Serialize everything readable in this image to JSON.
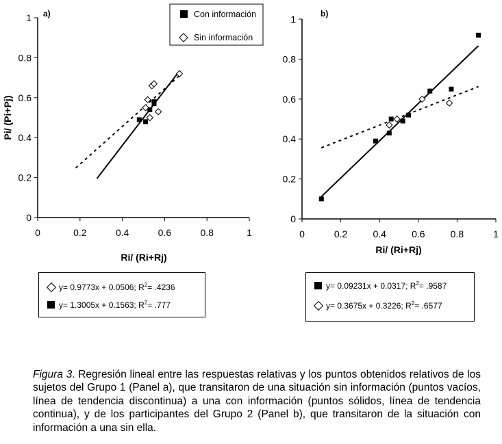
{
  "chart_data": [
    {
      "type": "scatter",
      "panel_label": "a)",
      "xlabel": "Ri/ (Ri+Rj)",
      "ylabel": "Pi/ (Pi+Pj)",
      "xlim": [
        0,
        1
      ],
      "ylim": [
        0,
        1
      ],
      "xticks": [
        "0",
        "0.2",
        "0.4",
        "0.6",
        "0.8",
        "1"
      ],
      "yticks": [
        "0",
        "0.2",
        "0.4",
        "0.6",
        "0.8",
        "1"
      ],
      "grid": false,
      "legend_position": "top-right",
      "series": [
        {
          "name": "Con información",
          "marker": "filled-square",
          "points": [
            [
              0.48,
              0.49
            ],
            [
              0.51,
              0.48
            ],
            [
              0.53,
              0.54
            ],
            [
              0.55,
              0.58
            ],
            [
              0.55,
              0.57
            ]
          ],
          "trendline": {
            "style": "solid",
            "x_range": [
              0.28,
              0.67
            ],
            "equation": "y= 1.3005x + 0.1563; R2= .777"
          }
        },
        {
          "name": "Sin información",
          "marker": "open-diamond",
          "points": [
            [
              0.52,
              0.59
            ],
            [
              0.53,
              0.5
            ],
            [
              0.54,
              0.66
            ],
            [
              0.55,
              0.67
            ],
            [
              0.57,
              0.53
            ],
            [
              0.51,
              0.55
            ],
            [
              0.67,
              0.72
            ]
          ],
          "trendline": {
            "style": "dashed",
            "x_range": [
              0.18,
              0.67
            ],
            "equation": "y= 0.9773x + 0.0506; R2= .4236"
          }
        }
      ]
    },
    {
      "type": "scatter",
      "panel_label": "b)",
      "xlabel": "Ri/ (Ri+Rj)",
      "ylabel": "",
      "xlim": [
        0,
        1
      ],
      "ylim": [
        0,
        1
      ],
      "xticks": [
        "0",
        "0.2",
        "0.4",
        "0.6",
        "0.8",
        "1"
      ],
      "yticks": [
        "0",
        "0.2",
        "0.4",
        "0.6",
        "0.8",
        "1"
      ],
      "grid": false,
      "series": [
        {
          "name": "Con información",
          "marker": "filled-square",
          "points": [
            [
              0.1,
              0.1
            ],
            [
              0.38,
              0.39
            ],
            [
              0.45,
              0.43
            ],
            [
              0.46,
              0.5
            ],
            [
              0.52,
              0.49
            ],
            [
              0.55,
              0.52
            ],
            [
              0.66,
              0.64
            ],
            [
              0.77,
              0.65
            ],
            [
              0.91,
              0.92
            ]
          ],
          "trendline": {
            "style": "solid",
            "x_range": [
              0.1,
              0.91
            ],
            "equation": "y= 0.09231x + 0.0317; R2= .9587"
          }
        },
        {
          "name": "Sin información",
          "marker": "open-diamond",
          "points": [
            [
              0.45,
              0.47
            ],
            [
              0.49,
              0.5
            ],
            [
              0.62,
              0.6
            ],
            [
              0.76,
              0.58
            ]
          ],
          "trendline": {
            "style": "dashed",
            "x_range": [
              0.1,
              0.91
            ],
            "equation": "y= 0.3675x + 0.3226; R2= .6577"
          }
        }
      ]
    }
  ],
  "equations_a": {
    "diamond": {
      "prefix": "y= 0.9773x + 0.0506; R",
      "sup": "2",
      "suffix": "= .4236"
    },
    "square": {
      "prefix": "y= 1.3005x + 0.1563; R",
      "sup": "2",
      "suffix": "= .777"
    }
  },
  "equations_b": {
    "square": {
      "prefix": "y= 0.09231x + 0.0317; R",
      "sup": "2",
      "suffix": "= .9587"
    },
    "diamond": {
      "prefix": "y= 0.3675x + 0.3226; R",
      "sup": "2",
      "suffix": "= .6577"
    }
  },
  "caption": {
    "figure_label": "Figura 3",
    "text": ". Regresión lineal entre las respuestas relativas y los puntos obtenidos relativos de los sujetos del Grupo 1 (Panel a), que transitaron de una situación sin información (puntos vacíos, línea de tendencia discontinua) a una con información (puntos sólidos, línea de tendencia continua), y de los participantes del Grupo 2 (Panel b), que transitaron de la situación con información a una sin ella."
  }
}
